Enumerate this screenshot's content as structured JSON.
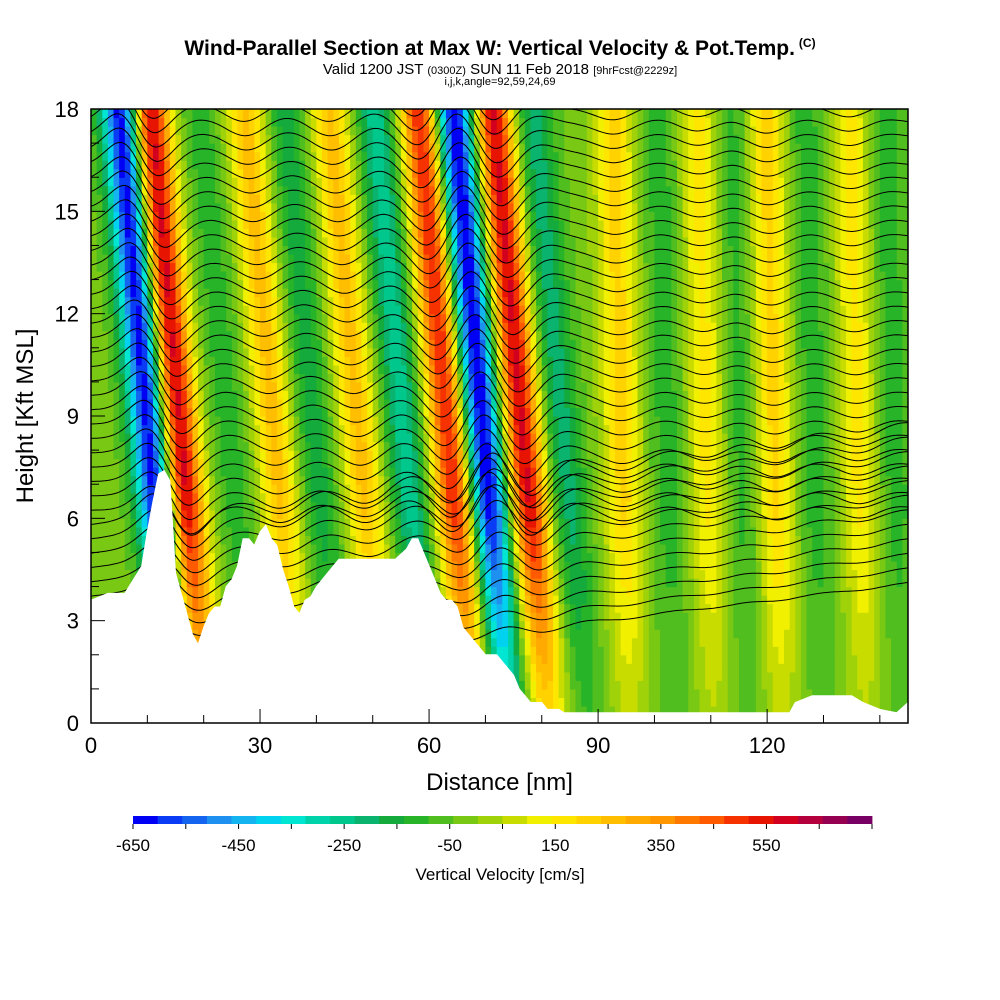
{
  "chart_data": {
    "type": "heatmap",
    "title": "Wind-Parallel Section at Max W: Vertical Velocity & Pot.Temp.",
    "title_mark": "(C)",
    "subtitle_main": "Valid 1200 JST",
    "subtitle_utc": "(0300Z)",
    "subtitle_date": "SUN 11 Feb 2018",
    "subtitle_fcst": "[9hrFcst@2229z]",
    "subtitle2": "i,j,k,angle=92,59,24,69",
    "xlabel": "Distance [nm]",
    "ylabel": "Height [Kft MSL]",
    "xlim": [
      0,
      145
    ],
    "ylim": [
      0,
      18
    ],
    "xticks": [
      "0",
      "30",
      "60",
      "90",
      "120"
    ],
    "xtick_values": [
      0,
      30,
      60,
      90,
      120
    ],
    "yticks": [
      "0",
      "3",
      "6",
      "9",
      "12",
      "15",
      "18"
    ],
    "ytick_values": [
      0,
      3,
      6,
      9,
      12,
      15,
      18
    ],
    "colorbar": {
      "title": "Vertical Velocity [cm/s]",
      "labels": [
        "-650",
        "-450",
        "-250",
        "-50",
        "150",
        "350",
        "550"
      ],
      "label_values": [
        -650,
        -450,
        -250,
        -50,
        150,
        350,
        550
      ],
      "min": -650,
      "max": 750,
      "step": 50,
      "colors": [
        "#0000f5",
        "#0a3cf5",
        "#1464f0",
        "#1e90f0",
        "#14b4f0",
        "#00d2f0",
        "#00e6d2",
        "#00d2aa",
        "#00c88c",
        "#0ab46e",
        "#14aa3c",
        "#28b428",
        "#50be1e",
        "#78c814",
        "#a0d20a",
        "#c8dc00",
        "#f0f000",
        "#ffe600",
        "#ffd200",
        "#ffbe00",
        "#ffaa00",
        "#ff9600",
        "#ff7800",
        "#ff5a00",
        "#f53200",
        "#e61400",
        "#d2001e",
        "#b4003c",
        "#960050",
        "#780064"
      ]
    },
    "vv_bands": [
      {
        "x_nm": 13,
        "w_cms": -700
      },
      {
        "x_nm": 18,
        "w_cms": 700
      },
      {
        "x_nm": 27,
        "w_cms": -100
      },
      {
        "x_nm": 35,
        "w_cms": 300
      },
      {
        "x_nm": 42,
        "w_cms": -150
      },
      {
        "x_nm": 50,
        "w_cms": 300
      },
      {
        "x_nm": 58,
        "w_cms": -250
      },
      {
        "x_nm": 66,
        "w_cms": 600
      },
      {
        "x_nm": 72,
        "w_cms": -700
      },
      {
        "x_nm": 79,
        "w_cms": 650
      },
      {
        "x_nm": 86,
        "w_cms": -200
      },
      {
        "x_nm": 95,
        "w_cms": 250
      },
      {
        "x_nm": 103,
        "w_cms": -100
      },
      {
        "x_nm": 110,
        "w_cms": 200
      },
      {
        "x_nm": 116,
        "w_cms": -100
      },
      {
        "x_nm": 122,
        "w_cms": 250
      },
      {
        "x_nm": 129,
        "w_cms": -100
      },
      {
        "x_nm": 137,
        "w_cms": 200
      },
      {
        "x_nm": 143,
        "w_cms": -100
      }
    ],
    "terrain": {
      "x_nm": [
        0,
        3,
        6,
        9,
        10,
        11,
        12,
        13,
        14,
        15,
        16,
        17,
        18,
        19,
        20,
        21,
        22,
        23,
        24,
        25,
        26,
        27,
        28,
        29,
        30,
        31,
        32,
        33,
        34,
        35,
        36,
        37,
        38,
        39,
        40,
        42,
        44,
        46,
        48,
        50,
        52,
        54,
        56,
        57,
        58,
        59,
        60,
        61,
        62,
        63,
        64,
        65,
        66,
        67,
        68,
        69,
        70,
        71,
        72,
        73,
        74,
        75,
        76,
        77,
        78,
        79,
        80,
        81,
        82,
        83,
        84,
        86,
        88,
        90,
        95,
        100,
        105,
        110,
        115,
        120,
        124,
        125,
        128,
        131,
        134,
        135,
        137,
        140,
        143,
        145
      ],
      "height_kft": [
        3.6,
        3.8,
        3.8,
        4.6,
        5.6,
        6.5,
        7.3,
        7.4,
        7.1,
        4.4,
        3.8,
        3.2,
        2.6,
        2.3,
        2.8,
        3.2,
        3.4,
        3.4,
        4.0,
        4.2,
        4.6,
        5.4,
        5.4,
        5.2,
        5.6,
        5.8,
        5.4,
        5.2,
        4.5,
        4.0,
        3.4,
        3.2,
        3.6,
        3.7,
        4.0,
        4.4,
        4.8,
        4.8,
        4.8,
        4.8,
        4.8,
        4.8,
        5.1,
        5.4,
        5.4,
        5.0,
        4.6,
        4.2,
        3.8,
        3.6,
        3.6,
        3.4,
        2.8,
        2.6,
        2.4,
        2.2,
        2.0,
        2.0,
        2.0,
        1.8,
        1.6,
        1.4,
        1.0,
        0.8,
        0.6,
        0.6,
        0.6,
        0.4,
        0.4,
        0.4,
        0.3,
        0.3,
        0.3,
        0.3,
        0.3,
        0.3,
        0.3,
        0.3,
        0.3,
        0.3,
        0.3,
        0.6,
        0.8,
        0.8,
        0.8,
        0.8,
        0.6,
        0.4,
        0.3,
        0.6
      ]
    },
    "theta_contours": {
      "levels_count": 42,
      "surface_height_kft": 1.2,
      "spacing_kft": 0.42
    }
  }
}
